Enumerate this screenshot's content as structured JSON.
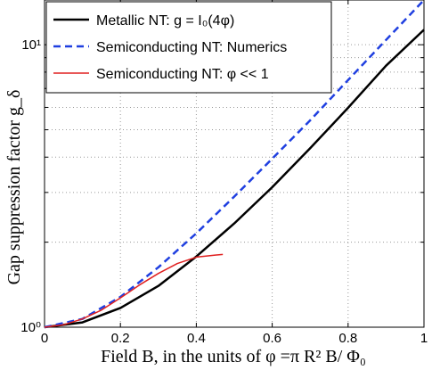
{
  "chart_data": {
    "type": "line",
    "xlabel": "Field  B, in the units of  φ =π R² B/ Φ₀",
    "ylabel": "Gap suppression factor  g_δ",
    "xlim": [
      0,
      1
    ],
    "ylim": [
      1,
      14.4
    ],
    "yscale": "log",
    "grid": true,
    "legend_position": "top-left",
    "x_ticks": [
      "0",
      "0.2",
      "0.4",
      "0.6",
      "0.8",
      "1"
    ],
    "y_ticks": [
      "10⁰",
      "10¹"
    ],
    "series": [
      {
        "name": "Metallic NT:  g = I₀(4φ)",
        "color": "#000000",
        "style": "solid",
        "x": [
          0,
          0.1,
          0.2,
          0.3,
          0.4,
          0.5,
          0.6,
          0.7,
          0.8,
          0.9,
          1.0
        ],
        "y": [
          1.0,
          1.04,
          1.17,
          1.4,
          1.78,
          2.33,
          3.13,
          4.3,
          5.98,
          8.43,
          11.3
        ]
      },
      {
        "name": "Semiconducting NT: Numerics",
        "color": "#1f3fe0",
        "style": "dashed",
        "x": [
          0,
          0.1,
          0.2,
          0.3,
          0.4,
          0.5,
          0.6,
          0.7,
          0.8,
          0.9,
          1.0
        ],
        "y": [
          1.0,
          1.07,
          1.28,
          1.63,
          2.15,
          2.9,
          3.95,
          5.4,
          7.5,
          10.4,
          14.4
        ]
      },
      {
        "name": "Semiconducting NT: φ << 1",
        "color": "#e02020",
        "style": "solid",
        "x": [
          0,
          0.05,
          0.1,
          0.15,
          0.2,
          0.25,
          0.3,
          0.35,
          0.4,
          0.45,
          0.47
        ],
        "y": [
          1.0,
          1.02,
          1.07,
          1.15,
          1.27,
          1.41,
          1.55,
          1.68,
          1.77,
          1.8,
          1.81
        ]
      }
    ]
  }
}
